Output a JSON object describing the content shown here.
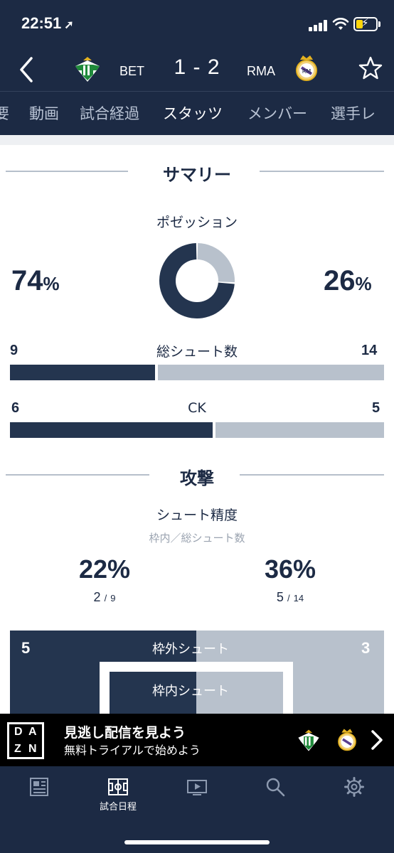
{
  "status_bar": {
    "time": "22:51",
    "location_icon": "location-arrow-icon"
  },
  "match": {
    "home_abbr": "BET",
    "away_abbr": "RMA",
    "score": "1 - 2",
    "home_crest": "real-betis-crest",
    "away_crest": "real-madrid-crest"
  },
  "tabs": [
    "要",
    "動画",
    "試合経過",
    "スタッツ",
    "メンバー",
    "選手レ"
  ],
  "active_tab": "スタッツ",
  "summary": {
    "title": "サマリー",
    "possession": {
      "label": "ポゼッション",
      "home": "74",
      "away": "26",
      "unit": "%",
      "home_value": 74,
      "away_value": 26
    },
    "shots": {
      "label": "総シュート数",
      "home": "9",
      "away": "14",
      "home_value": 9,
      "away_value": 14
    },
    "corners": {
      "label": "CK",
      "home": "6",
      "away": "5",
      "home_value": 6,
      "away_value": 5
    }
  },
  "attack": {
    "title": "攻撃",
    "shot_accuracy": {
      "label": "シュート精度",
      "sublabel": "枠内／総シュート数",
      "home_pct": "22%",
      "away_pct": "36%",
      "home_on": "2",
      "home_total": "9",
      "away_on": "5",
      "away_total": "14",
      "separator": "/"
    },
    "off_target": {
      "label": "枠外シュート",
      "home": "5",
      "away": "3"
    },
    "on_target": {
      "label": "枠内シュート"
    }
  },
  "promo": {
    "brand": [
      "D",
      "A",
      "Z",
      "N"
    ],
    "title": "見逃し配信を見よう",
    "subtitle": "無料トライアルで始めよう"
  },
  "nav": {
    "items": [
      {
        "label": "",
        "icon": "news-icon"
      },
      {
        "label": "試合日程",
        "icon": "pitch-icon"
      },
      {
        "label": "",
        "icon": "video-icon"
      },
      {
        "label": "",
        "icon": "search-icon"
      },
      {
        "label": "",
        "icon": "gear-icon"
      }
    ]
  },
  "colors": {
    "navy": "#1c2a44",
    "home_bar": "#24354f",
    "away_bar": "#b8c1cc"
  }
}
